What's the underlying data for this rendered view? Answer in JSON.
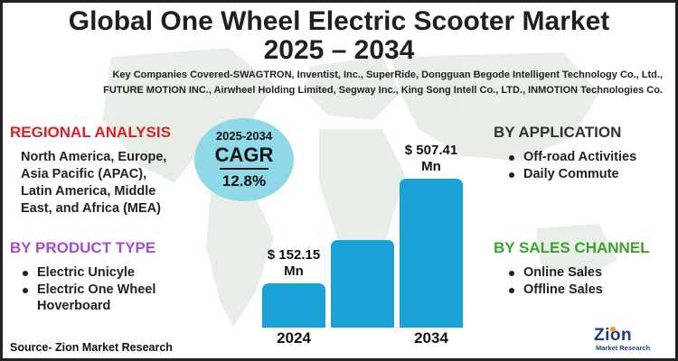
{
  "title": {
    "line1": "Global One Wheel Electric Scooter Market",
    "line2": "2025 – 2034"
  },
  "companies": {
    "line1": "Key Companies Covered-SWAGTRON, Inventist, Inc., SuperRide, Dongguan Begode Intelligent Technology Co., Ltd.,",
    "line2": "FUTURE MOTION INC., Airwheel Holding Limited, Segway Inc., King Song Intell Co., LTD., INMOTION Technologies Co."
  },
  "regional": {
    "heading": "REGIONAL ANALYSIS",
    "lines": [
      "North America, Europe,",
      "Asia Pacific (APAC),",
      "Latin America, Middle",
      "East, and Africa (MEA)"
    ]
  },
  "product_type": {
    "heading": "BY PRODUCT TYPE",
    "items": [
      "Electric Unicyle",
      "Electric One Wheel",
      "Hoverboard"
    ]
  },
  "application": {
    "heading": "BY APPLICATION",
    "items": [
      "Off-road Activities",
      "Daily Commute"
    ]
  },
  "sales_channel": {
    "heading": "BY SALES CHANNEL",
    "items": [
      "Online Sales",
      "Offline Sales"
    ]
  },
  "cagr": {
    "period": "2025-2034",
    "label": "CAGR",
    "value": "12.8%"
  },
  "chart_data": {
    "type": "bar",
    "title": "Global One Wheel Electric Scooter Market",
    "categories": [
      "2024",
      "",
      "2034"
    ],
    "values": [
      152.15,
      300,
      507.41
    ],
    "data_labels": [
      [
        "$ 152.15",
        "Mn"
      ],
      null,
      [
        "$ 507.41",
        "Mn"
      ]
    ],
    "ylim": [
      0,
      560
    ],
    "xlabel": "",
    "ylabel": ""
  },
  "source": "Source- Zion Market Research",
  "logo": {
    "word": "Zion",
    "sub": "Market Research"
  },
  "colors": {
    "bar": "#1aa2d6",
    "cagr_bubble": "#8fd8e8",
    "regional_heading": "#d91f27",
    "product_heading": "#a34ec8",
    "sales_heading": "#3aa12f"
  }
}
